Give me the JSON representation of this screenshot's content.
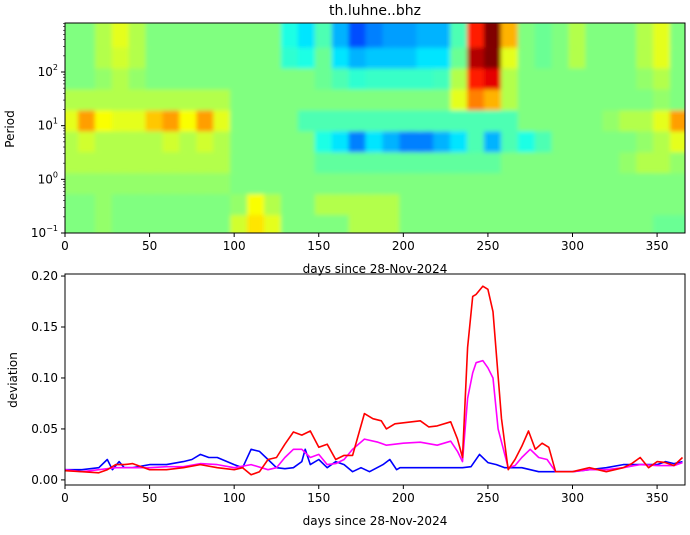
{
  "chart_data": [
    {
      "type": "heatmap",
      "title": "th.luhne..bhz",
      "xlabel": "days since 28-Nov-2024",
      "ylabel": "Period",
      "xlim": [
        0,
        366.5
      ],
      "ylim": [
        0.1,
        819
      ],
      "yscale": "log",
      "colormap": "jet",
      "grid": false,
      "xticks": [
        "0",
        "50",
        "100",
        "150",
        "200",
        "250",
        "300",
        "350"
      ],
      "xtick_values": [
        0,
        50,
        100,
        150,
        200,
        250,
        300,
        350
      ],
      "ytick_values": [
        0.1,
        1,
        10,
        100
      ],
      "ytick_labels": [
        {
          "base": "10",
          "exp": "−1"
        },
        {
          "base": "10",
          "exp": "0"
        },
        {
          "base": "10",
          "exp": "1"
        },
        {
          "base": "10",
          "exp": "2"
        }
      ],
      "day_bin_starts": [
        0,
        10,
        20,
        30,
        40,
        50,
        60,
        70,
        80,
        90,
        100,
        110,
        120,
        130,
        140,
        150,
        160,
        170,
        180,
        190,
        200,
        210,
        220,
        230,
        240,
        250,
        260,
        270,
        280,
        290,
        300,
        310,
        320,
        330,
        340,
        350,
        360
      ],
      "log10_period_bin_edges": [
        -1.0,
        -0.61,
        -0.22,
        0.17,
        0.56,
        0.95,
        1.34,
        1.73,
        2.12,
        2.51,
        2.913
      ],
      "values_by_period_row_low_to_high": [
        [
          0.5,
          0.5,
          0.52,
          0.5,
          0.5,
          0.5,
          0.5,
          0.5,
          0.5,
          0.5,
          0.58,
          0.65,
          0.6,
          0.5,
          0.5,
          0.5,
          0.5,
          0.55,
          0.55,
          0.55,
          0.5,
          0.5,
          0.5,
          0.5,
          0.5,
          0.5,
          0.5,
          0.5,
          0.5,
          0.5,
          0.5,
          0.5,
          0.5,
          0.5,
          0.5,
          0.48,
          0.48
        ],
        [
          0.5,
          0.5,
          0.52,
          0.5,
          0.5,
          0.5,
          0.5,
          0.5,
          0.5,
          0.5,
          0.52,
          0.62,
          0.55,
          0.5,
          0.5,
          0.55,
          0.55,
          0.55,
          0.55,
          0.55,
          0.5,
          0.5,
          0.5,
          0.5,
          0.5,
          0.5,
          0.5,
          0.5,
          0.5,
          0.5,
          0.5,
          0.5,
          0.5,
          0.5,
          0.5,
          0.5,
          0.5
        ],
        [
          0.52,
          0.52,
          0.52,
          0.52,
          0.52,
          0.52,
          0.52,
          0.52,
          0.52,
          0.52,
          0.5,
          0.5,
          0.5,
          0.5,
          0.5,
          0.5,
          0.5,
          0.5,
          0.5,
          0.5,
          0.5,
          0.5,
          0.5,
          0.5,
          0.5,
          0.5,
          0.5,
          0.5,
          0.5,
          0.5,
          0.5,
          0.5,
          0.5,
          0.5,
          0.5,
          0.5,
          0.5
        ],
        [
          0.55,
          0.55,
          0.55,
          0.55,
          0.55,
          0.55,
          0.55,
          0.55,
          0.55,
          0.55,
          0.5,
          0.5,
          0.5,
          0.5,
          0.5,
          0.47,
          0.47,
          0.47,
          0.47,
          0.47,
          0.47,
          0.47,
          0.47,
          0.47,
          0.47,
          0.47,
          0.5,
          0.5,
          0.5,
          0.5,
          0.5,
          0.5,
          0.5,
          0.52,
          0.55,
          0.55,
          0.52
        ],
        [
          0.55,
          0.58,
          0.55,
          0.55,
          0.55,
          0.55,
          0.58,
          0.55,
          0.58,
          0.55,
          0.5,
          0.5,
          0.5,
          0.5,
          0.5,
          0.4,
          0.35,
          0.25,
          0.35,
          0.3,
          0.25,
          0.25,
          0.3,
          0.35,
          0.45,
          0.3,
          0.45,
          0.4,
          0.45,
          0.5,
          0.5,
          0.5,
          0.5,
          0.5,
          0.52,
          0.55,
          0.6
        ],
        [
          0.6,
          0.72,
          0.62,
          0.6,
          0.6,
          0.68,
          0.72,
          0.62,
          0.72,
          0.6,
          0.5,
          0.5,
          0.5,
          0.5,
          0.45,
          0.45,
          0.45,
          0.45,
          0.45,
          0.45,
          0.45,
          0.45,
          0.45,
          0.45,
          0.45,
          0.45,
          0.45,
          0.5,
          0.5,
          0.5,
          0.5,
          0.5,
          0.52,
          0.55,
          0.55,
          0.6,
          0.72
        ],
        [
          0.55,
          0.55,
          0.55,
          0.55,
          0.55,
          0.55,
          0.55,
          0.55,
          0.55,
          0.55,
          0.5,
          0.5,
          0.5,
          0.5,
          0.5,
          0.5,
          0.5,
          0.5,
          0.5,
          0.5,
          0.5,
          0.5,
          0.5,
          0.6,
          0.75,
          0.7,
          0.55,
          0.5,
          0.5,
          0.5,
          0.5,
          0.5,
          0.5,
          0.5,
          0.5,
          0.52,
          0.5
        ],
        [
          0.5,
          0.5,
          0.52,
          0.55,
          0.52,
          0.5,
          0.5,
          0.5,
          0.5,
          0.5,
          0.5,
          0.5,
          0.5,
          0.5,
          0.5,
          0.48,
          0.45,
          0.42,
          0.43,
          0.43,
          0.43,
          0.43,
          0.44,
          0.55,
          0.85,
          0.9,
          0.55,
          0.5,
          0.5,
          0.5,
          0.5,
          0.5,
          0.5,
          0.5,
          0.52,
          0.55,
          0.5
        ],
        [
          0.5,
          0.5,
          0.55,
          0.58,
          0.55,
          0.5,
          0.5,
          0.5,
          0.5,
          0.5,
          0.5,
          0.5,
          0.5,
          0.42,
          0.4,
          0.48,
          0.35,
          0.3,
          0.32,
          0.32,
          0.32,
          0.35,
          0.35,
          0.48,
          0.95,
          1.0,
          0.6,
          0.5,
          0.48,
          0.5,
          0.55,
          0.5,
          0.5,
          0.5,
          0.55,
          0.6,
          0.5
        ],
        [
          0.5,
          0.5,
          0.55,
          0.6,
          0.55,
          0.5,
          0.5,
          0.5,
          0.5,
          0.5,
          0.5,
          0.5,
          0.5,
          0.4,
          0.35,
          0.45,
          0.3,
          0.2,
          0.25,
          0.28,
          0.28,
          0.3,
          0.3,
          0.45,
          0.85,
          1.0,
          0.7,
          0.5,
          0.48,
          0.5,
          0.55,
          0.5,
          0.5,
          0.5,
          0.55,
          0.6,
          0.5
        ]
      ]
    },
    {
      "type": "line",
      "xlabel": "days since 28-Nov-2024",
      "ylabel": "deviation",
      "xlim": [
        0,
        366.5
      ],
      "ylim": [
        -0.005,
        0.202
      ],
      "grid": false,
      "xticks": [
        "0",
        "50",
        "100",
        "150",
        "200",
        "250",
        "300",
        "350"
      ],
      "xtick_values": [
        0,
        50,
        100,
        150,
        200,
        250,
        300,
        350
      ],
      "yticks": [
        "0.00",
        "0.05",
        "0.10",
        "0.15",
        "0.20"
      ],
      "ytick_values": [
        0,
        0.05,
        0.1,
        0.15,
        0.2
      ],
      "series": [
        {
          "color": "#0000ff",
          "x": [
            0,
            10,
            20,
            25,
            28,
            32,
            35,
            40,
            50,
            60,
            70,
            75,
            80,
            85,
            90,
            100,
            105,
            110,
            115,
            120,
            125,
            130,
            135,
            140,
            142,
            145,
            150,
            155,
            160,
            165,
            170,
            175,
            180,
            188,
            192,
            196,
            198,
            200,
            210,
            220,
            230,
            235,
            240,
            245,
            250,
            255,
            260,
            270,
            280,
            290,
            300,
            310,
            320,
            330,
            340,
            350,
            355,
            360,
            365
          ],
          "y": [
            0.01,
            0.01,
            0.012,
            0.02,
            0.01,
            0.018,
            0.012,
            0.012,
            0.015,
            0.015,
            0.018,
            0.02,
            0.025,
            0.022,
            0.022,
            0.015,
            0.012,
            0.03,
            0.028,
            0.02,
            0.012,
            0.011,
            0.012,
            0.018,
            0.03,
            0.015,
            0.02,
            0.012,
            0.018,
            0.015,
            0.008,
            0.012,
            0.008,
            0.015,
            0.02,
            0.01,
            0.012,
            0.012,
            0.012,
            0.012,
            0.012,
            0.012,
            0.013,
            0.025,
            0.017,
            0.015,
            0.012,
            0.012,
            0.008,
            0.008,
            0.008,
            0.01,
            0.012,
            0.015,
            0.015,
            0.015,
            0.018,
            0.016,
            0.018
          ]
        },
        {
          "color": "#ff00ff",
          "x": [
            0,
            10,
            20,
            30,
            40,
            50,
            60,
            70,
            80,
            90,
            100,
            110,
            120,
            125,
            130,
            135,
            140,
            145,
            150,
            155,
            160,
            165,
            170,
            177,
            185,
            190,
            200,
            210,
            220,
            228,
            232,
            235,
            238,
            241,
            243,
            247,
            250,
            253,
            256,
            262,
            266,
            270,
            275,
            280,
            285,
            290,
            300,
            310,
            320,
            330,
            340,
            350,
            360,
            365
          ],
          "y": [
            0.01,
            0.008,
            0.01,
            0.012,
            0.012,
            0.012,
            0.013,
            0.013,
            0.016,
            0.015,
            0.012,
            0.015,
            0.01,
            0.012,
            0.022,
            0.03,
            0.03,
            0.022,
            0.025,
            0.015,
            0.016,
            0.02,
            0.03,
            0.04,
            0.037,
            0.034,
            0.036,
            0.037,
            0.034,
            0.038,
            0.028,
            0.018,
            0.08,
            0.105,
            0.115,
            0.117,
            0.11,
            0.1,
            0.05,
            0.012,
            0.014,
            0.022,
            0.03,
            0.022,
            0.02,
            0.008,
            0.008,
            0.01,
            0.01,
            0.012,
            0.015,
            0.014,
            0.014,
            0.017
          ]
        },
        {
          "color": "#ff0000",
          "x": [
            0,
            10,
            20,
            25,
            30,
            35,
            40,
            50,
            60,
            70,
            80,
            90,
            100,
            105,
            110,
            115,
            120,
            125,
            130,
            135,
            140,
            145,
            150,
            155,
            160,
            165,
            170,
            177,
            182,
            187,
            190,
            195,
            200,
            210,
            215,
            220,
            228,
            232,
            235,
            238,
            241,
            243,
            247,
            250,
            253,
            258,
            262,
            266,
            270,
            274,
            278,
            282,
            286,
            290,
            300,
            310,
            320,
            330,
            335,
            340,
            345,
            350,
            355,
            360,
            365
          ],
          "y": [
            0.009,
            0.008,
            0.007,
            0.01,
            0.015,
            0.015,
            0.016,
            0.01,
            0.01,
            0.012,
            0.015,
            0.012,
            0.01,
            0.012,
            0.005,
            0.008,
            0.02,
            0.022,
            0.035,
            0.047,
            0.044,
            0.048,
            0.032,
            0.035,
            0.02,
            0.024,
            0.024,
            0.065,
            0.06,
            0.058,
            0.05,
            0.055,
            0.056,
            0.058,
            0.052,
            0.053,
            0.057,
            0.04,
            0.022,
            0.13,
            0.18,
            0.182,
            0.19,
            0.187,
            0.165,
            0.06,
            0.01,
            0.02,
            0.033,
            0.048,
            0.03,
            0.036,
            0.032,
            0.008,
            0.008,
            0.012,
            0.008,
            0.012,
            0.016,
            0.022,
            0.012,
            0.018,
            0.017,
            0.014,
            0.022
          ]
        }
      ]
    }
  ]
}
